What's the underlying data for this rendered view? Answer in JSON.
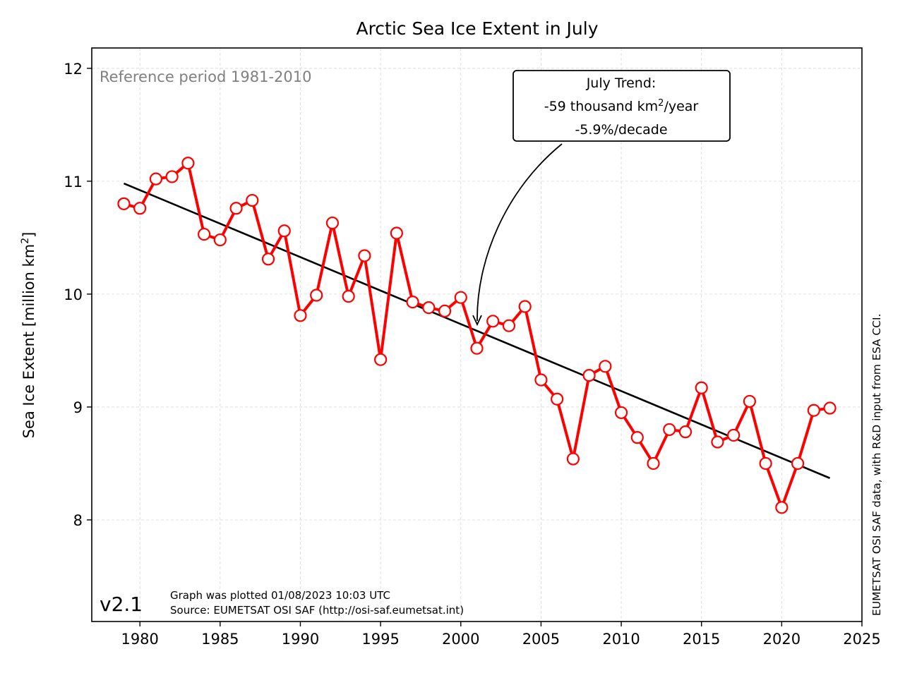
{
  "chart_data": {
    "type": "line",
    "title": "Arctic Sea Ice Extent in July",
    "ylabel_main": "Sea Ice Extent [million km",
    "ylabel_sup": "2",
    "ylabel_tail": "]",
    "xlim": [
      1977,
      2025
    ],
    "ylim": [
      7.1,
      12.18
    ],
    "x_ticks": [
      1980,
      1985,
      1990,
      1995,
      2000,
      2005,
      2010,
      2015,
      2020,
      2025
    ],
    "y_ticks": [
      8,
      9,
      10,
      11,
      12
    ],
    "grid": true,
    "series": [
      {
        "color": "#ff0000",
        "marker": "open-circle",
        "x": [
          1979,
          1980,
          1981,
          1982,
          1983,
          1984,
          1985,
          1986,
          1987,
          1988,
          1989,
          1990,
          1991,
          1992,
          1993,
          1994,
          1995,
          1996,
          1997,
          1998,
          1999,
          2000,
          2001,
          2002,
          2003,
          2004,
          2005,
          2006,
          2007,
          2008,
          2009,
          2010,
          2011,
          2012,
          2013,
          2014,
          2015,
          2016,
          2017,
          2018,
          2019,
          2020,
          2021,
          2022,
          2023
        ],
        "y": [
          10.8,
          10.76,
          11.02,
          11.04,
          11.16,
          10.53,
          10.48,
          10.76,
          10.83,
          10.31,
          10.56,
          9.81,
          9.99,
          10.63,
          9.98,
          10.34,
          9.42,
          10.54,
          9.93,
          9.88,
          9.85,
          9.97,
          9.52,
          9.76,
          9.72,
          9.89,
          9.24,
          9.07,
          8.54,
          9.28,
          9.36,
          8.95,
          8.73,
          8.5,
          8.8,
          8.78,
          9.17,
          8.69,
          8.75,
          9.05,
          8.5,
          8.11,
          8.5,
          8.97,
          8.99
        ]
      }
    ],
    "trend": {
      "color": "#000000",
      "x": [
        1979,
        2023
      ],
      "y": [
        10.98,
        8.37
      ]
    },
    "reference_text": "Reference period 1981-2010",
    "annotation": {
      "line1": "July Trend:",
      "line2_pre": "-59 thousand km",
      "line2_sup": "2",
      "line2_post": "/year",
      "line3": "-5.9%/decade",
      "arrow_target": [
        2001,
        9.7
      ]
    },
    "version": "v2.1",
    "footer_line1": "Graph was plotted 01/08/2023 10:03 UTC",
    "footer_line2": "Source: EUMETSAT OSI SAF (http://osi-saf.eumetsat.int)",
    "credit": "EUMETSAT OSI SAF data, with R&D input from ESA CCI."
  }
}
